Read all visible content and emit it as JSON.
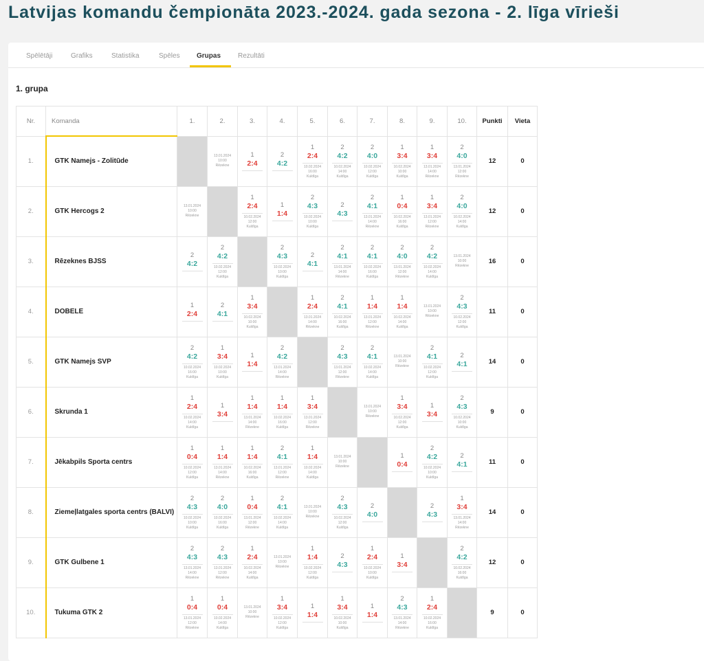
{
  "page_title": "Latvijas komandu čempionāta 2023.-2024. gada sezona - 2. līga vīrieši",
  "tabs": [
    "Spēlētāji",
    "Grafiks",
    "Statistika",
    "Spēles",
    "Grupas",
    "Rezultāti"
  ],
  "active_tab": "Grupas",
  "group_title": "1. grupa",
  "table_headers": {
    "nr": "Nr.",
    "team": "Komanda",
    "cols": [
      "1.",
      "2.",
      "3.",
      "4.",
      "5.",
      "6.",
      "7.",
      "8.",
      "9.",
      "10."
    ],
    "points": "Punkti",
    "place": "Vieta"
  },
  "accent_color": "#f2c500",
  "win_color": "#3aa79c",
  "loss_color": "#e0403a",
  "rows": [
    {
      "nr": "1.",
      "team": "GTK Namejs - Zolitūde",
      "points": "12",
      "place": "0",
      "cells": [
        null,
        {
          "info": [
            "13.01.2024",
            "10:00",
            "Rēzekne"
          ]
        },
        {
          "p": "1",
          "s": "2:4",
          "r": "loss"
        },
        {
          "p": "2",
          "s": "4:2",
          "r": "win"
        },
        {
          "p": "1",
          "s": "2:4",
          "r": "loss",
          "info": [
            "10.02.2024",
            "16:00",
            "Kuldīga"
          ]
        },
        {
          "p": "2",
          "s": "4:2",
          "r": "win",
          "info": [
            "10.02.2024",
            "14:00",
            "Kuldīga"
          ]
        },
        {
          "p": "2",
          "s": "4:0",
          "r": "win",
          "info": [
            "10.02.2024",
            "12:00",
            "Kuldīga"
          ]
        },
        {
          "p": "1",
          "s": "3:4",
          "r": "loss",
          "info": [
            "10.02.2024",
            "10:00",
            "Kuldīga"
          ]
        },
        {
          "p": "1",
          "s": "3:4",
          "r": "loss",
          "info": [
            "13.01.2024",
            "14:00",
            "Rēzekne"
          ]
        },
        {
          "p": "2",
          "s": "4:0",
          "r": "win",
          "info": [
            "13.01.2024",
            "12:00",
            "Rēzekne"
          ]
        }
      ]
    },
    {
      "nr": "2.",
      "team": "GTK Hercogs 2",
      "points": "12",
      "place": "0",
      "cells": [
        {
          "info": [
            "13.01.2024",
            "10:00",
            "Rēzekne"
          ]
        },
        null,
        {
          "p": "1",
          "s": "2:4",
          "r": "loss",
          "info": [
            "10.02.2024",
            "12:00",
            "Kuldīga"
          ]
        },
        {
          "p": "1",
          "s": "1:4",
          "r": "loss"
        },
        {
          "p": "2",
          "s": "4:3",
          "r": "win",
          "info": [
            "10.02.2024",
            "10:00",
            "Kuldīga"
          ]
        },
        {
          "p": "2",
          "s": "4:3",
          "r": "win"
        },
        {
          "p": "2",
          "s": "4:1",
          "r": "win",
          "info": [
            "13.01.2024",
            "14:00",
            "Rēzekne"
          ]
        },
        {
          "p": "1",
          "s": "0:4",
          "r": "loss",
          "info": [
            "10.02.2024",
            "16:00",
            "Kuldīga"
          ]
        },
        {
          "p": "1",
          "s": "3:4",
          "r": "loss",
          "info": [
            "13.01.2024",
            "12:00",
            "Rēzekne"
          ]
        },
        {
          "p": "2",
          "s": "4:0",
          "r": "win",
          "info": [
            "10.02.2024",
            "14:00",
            "Kuldīga"
          ]
        }
      ]
    },
    {
      "nr": "3.",
      "team": "Rēzeknes BJSS",
      "points": "16",
      "place": "0",
      "cells": [
        {
          "p": "2",
          "s": "4:2",
          "r": "win"
        },
        {
          "p": "2",
          "s": "4:2",
          "r": "win",
          "info": [
            "10.02.2024",
            "12:00",
            "Kuldīga"
          ]
        },
        null,
        {
          "p": "2",
          "s": "4:3",
          "r": "win",
          "info": [
            "10.02.2024",
            "10:00",
            "Kuldīga"
          ]
        },
        {
          "p": "2",
          "s": "4:1",
          "r": "win"
        },
        {
          "p": "2",
          "s": "4:1",
          "r": "win",
          "info": [
            "13.01.2024",
            "14:00",
            "Rēzekne"
          ]
        },
        {
          "p": "2",
          "s": "4:1",
          "r": "win",
          "info": [
            "10.02.2024",
            "16:00",
            "Kuldīga"
          ]
        },
        {
          "p": "2",
          "s": "4:0",
          "r": "win",
          "info": [
            "13.01.2024",
            "12:00",
            "Rēzekne"
          ]
        },
        {
          "p": "2",
          "s": "4:2",
          "r": "win",
          "info": [
            "10.02.2024",
            "14:00",
            "Kuldīga"
          ]
        },
        {
          "info": [
            "13.01.2024",
            "10:00",
            "Rēzekne"
          ]
        }
      ]
    },
    {
      "nr": "4.",
      "team": "DOBELE",
      "points": "11",
      "place": "0",
      "cells": [
        {
          "p": "1",
          "s": "2:4",
          "r": "loss"
        },
        {
          "p": "2",
          "s": "4:1",
          "r": "win"
        },
        {
          "p": "1",
          "s": "3:4",
          "r": "loss",
          "info": [
            "10.02.2024",
            "10:00",
            "Kuldīga"
          ]
        },
        null,
        {
          "p": "1",
          "s": "2:4",
          "r": "loss",
          "info": [
            "13.01.2024",
            "14:00",
            "Rēzekne"
          ]
        },
        {
          "p": "2",
          "s": "4:1",
          "r": "win",
          "info": [
            "10.02.2024",
            "16:00",
            "Kuldīga"
          ]
        },
        {
          "p": "1",
          "s": "1:4",
          "r": "loss",
          "info": [
            "13.01.2024",
            "12:00",
            "Rēzekne"
          ]
        },
        {
          "p": "1",
          "s": "1:4",
          "r": "loss",
          "info": [
            "10.02.2024",
            "14:00",
            "Kuldīga"
          ]
        },
        {
          "info": [
            "13.01.2024",
            "10:00",
            "Rēzekne"
          ]
        },
        {
          "p": "2",
          "s": "4:3",
          "r": "win",
          "info": [
            "10.02.2024",
            "12:00",
            "Kuldīga"
          ]
        }
      ]
    },
    {
      "nr": "5.",
      "team": "GTK Namejs SVP",
      "points": "14",
      "place": "0",
      "cells": [
        {
          "p": "2",
          "s": "4:2",
          "r": "win",
          "info": [
            "10.02.2024",
            "16:00",
            "Kuldīga"
          ]
        },
        {
          "p": "1",
          "s": "3:4",
          "r": "loss",
          "info": [
            "10.02.2024",
            "10:00",
            "Kuldīga"
          ]
        },
        {
          "p": "1",
          "s": "1:4",
          "r": "loss"
        },
        {
          "p": "2",
          "s": "4:2",
          "r": "win",
          "info": [
            "13.01.2024",
            "14:00",
            "Rēzekne"
          ]
        },
        null,
        {
          "p": "2",
          "s": "4:3",
          "r": "win",
          "info": [
            "13.01.2024",
            "12:00",
            "Rēzekne"
          ]
        },
        {
          "p": "2",
          "s": "4:1",
          "r": "win",
          "info": [
            "10.02.2024",
            "14:00",
            "Kuldīga"
          ]
        },
        {
          "info": [
            "13.01.2024",
            "10:00",
            "Rēzekne"
          ]
        },
        {
          "p": "2",
          "s": "4:1",
          "r": "win",
          "info": [
            "10.02.2024",
            "12:00",
            "Kuldīga"
          ]
        },
        {
          "p": "2",
          "s": "4:1",
          "r": "win"
        }
      ]
    },
    {
      "nr": "6.",
      "team": "Skrunda 1",
      "points": "9",
      "place": "0",
      "cells": [
        {
          "p": "1",
          "s": "2:4",
          "r": "loss",
          "info": [
            "10.02.2024",
            "14:00",
            "Kuldīga"
          ]
        },
        {
          "p": "1",
          "s": "3:4",
          "r": "loss"
        },
        {
          "p": "1",
          "s": "1:4",
          "r": "loss",
          "info": [
            "13.01.2024",
            "14:00",
            "Rēzekne"
          ]
        },
        {
          "p": "1",
          "s": "1:4",
          "r": "loss",
          "info": [
            "10.02.2024",
            "16:00",
            "Kuldīga"
          ]
        },
        {
          "p": "1",
          "s": "3:4",
          "r": "loss",
          "info": [
            "13.01.2024",
            "12:00",
            "Rēzekne"
          ]
        },
        null,
        {
          "info": [
            "13.01.2024",
            "10:00",
            "Rēzekne"
          ]
        },
        {
          "p": "1",
          "s": "3:4",
          "r": "loss",
          "info": [
            "10.02.2024",
            "12:00",
            "Kuldīga"
          ]
        },
        {
          "p": "1",
          "s": "3:4",
          "r": "loss"
        },
        {
          "p": "2",
          "s": "4:3",
          "r": "win",
          "info": [
            "10.02.2024",
            "10:00",
            "Kuldīga"
          ]
        }
      ]
    },
    {
      "nr": "7.",
      "team": "Jēkabpils Sporta centrs",
      "points": "11",
      "place": "0",
      "cells": [
        {
          "p": "1",
          "s": "0:4",
          "r": "loss",
          "info": [
            "10.02.2024",
            "12:00",
            "Kuldīga"
          ]
        },
        {
          "p": "1",
          "s": "1:4",
          "r": "loss",
          "info": [
            "13.01.2024",
            "14:00",
            "Rēzekne"
          ]
        },
        {
          "p": "1",
          "s": "1:4",
          "r": "loss",
          "info": [
            "10.02.2024",
            "16:00",
            "Kuldīga"
          ]
        },
        {
          "p": "2",
          "s": "4:1",
          "r": "win",
          "info": [
            "13.01.2024",
            "12:00",
            "Rēzekne"
          ]
        },
        {
          "p": "1",
          "s": "1:4",
          "r": "loss",
          "info": [
            "10.02.2024",
            "14:00",
            "Kuldīga"
          ]
        },
        {
          "info": [
            "13.01.2024",
            "10:00",
            "Rēzekne"
          ]
        },
        null,
        {
          "p": "1",
          "s": "0:4",
          "r": "loss"
        },
        {
          "p": "2",
          "s": "4:2",
          "r": "win",
          "info": [
            "10.02.2024",
            "10:00",
            "Kuldīga"
          ]
        },
        {
          "p": "2",
          "s": "4:1",
          "r": "win"
        }
      ]
    },
    {
      "nr": "8.",
      "team": "Ziemeļlatgales sporta centrs (BALVI)",
      "points": "14",
      "place": "0",
      "cells": [
        {
          "p": "2",
          "s": "4:3",
          "r": "win",
          "info": [
            "10.02.2024",
            "10:00",
            "Kuldīga"
          ]
        },
        {
          "p": "2",
          "s": "4:0",
          "r": "win",
          "info": [
            "10.02.2024",
            "16:00",
            "Kuldīga"
          ]
        },
        {
          "p": "1",
          "s": "0:4",
          "r": "loss",
          "info": [
            "13.01.2024",
            "12:00",
            "Rēzekne"
          ]
        },
        {
          "p": "2",
          "s": "4:1",
          "r": "win",
          "info": [
            "10.02.2024",
            "14:00",
            "Kuldīga"
          ]
        },
        {
          "info": [
            "13.01.2024",
            "10:00",
            "Rēzekne"
          ]
        },
        {
          "p": "2",
          "s": "4:3",
          "r": "win",
          "info": [
            "10.02.2024",
            "12:00",
            "Kuldīga"
          ]
        },
        {
          "p": "2",
          "s": "4:0",
          "r": "win"
        },
        null,
        {
          "p": "2",
          "s": "4:3",
          "r": "win"
        },
        {
          "p": "1",
          "s": "3:4",
          "r": "loss",
          "info": [
            "13.01.2024",
            "14:00",
            "Rēzekne"
          ]
        }
      ]
    },
    {
      "nr": "9.",
      "team": "GTK Gulbene 1",
      "points": "12",
      "place": "0",
      "cells": [
        {
          "p": "2",
          "s": "4:3",
          "r": "win",
          "info": [
            "13.01.2024",
            "14:00",
            "Rēzekne"
          ]
        },
        {
          "p": "2",
          "s": "4:3",
          "r": "win",
          "info": [
            "13.01.2024",
            "12:00",
            "Rēzekne"
          ]
        },
        {
          "p": "1",
          "s": "2:4",
          "r": "loss",
          "info": [
            "10.02.2024",
            "14:00",
            "Kuldīga"
          ]
        },
        {
          "info": [
            "13.01.2024",
            "10:00",
            "Rēzekne"
          ]
        },
        {
          "p": "1",
          "s": "1:4",
          "r": "loss",
          "info": [
            "10.02.2024",
            "12:00",
            "Kuldīga"
          ]
        },
        {
          "p": "2",
          "s": "4:3",
          "r": "win"
        },
        {
          "p": "1",
          "s": "2:4",
          "r": "loss",
          "info": [
            "10.02.2024",
            "10:00",
            "Kuldīga"
          ]
        },
        {
          "p": "1",
          "s": "3:4",
          "r": "loss"
        },
        null,
        {
          "p": "2",
          "s": "4:2",
          "r": "win",
          "info": [
            "10.02.2024",
            "16:00",
            "Kuldīga"
          ]
        }
      ]
    },
    {
      "nr": "10.",
      "team": "Tukuma GTK 2",
      "points": "9",
      "place": "0",
      "cells": [
        {
          "p": "1",
          "s": "0:4",
          "r": "loss",
          "info": [
            "13.01.2024",
            "12:00",
            "Rēzekne"
          ]
        },
        {
          "p": "1",
          "s": "0:4",
          "r": "loss",
          "info": [
            "10.02.2024",
            "14:00",
            "Kuldīga"
          ]
        },
        {
          "info": [
            "13.01.2024",
            "10:00",
            "Rēzekne"
          ]
        },
        {
          "p": "1",
          "s": "3:4",
          "r": "loss",
          "info": [
            "10.02.2024",
            "12:00",
            "Kuldīga"
          ]
        },
        {
          "p": "1",
          "s": "1:4",
          "r": "loss"
        },
        {
          "p": "1",
          "s": "3:4",
          "r": "loss",
          "info": [
            "10.02.2024",
            "10:00",
            "Kuldīga"
          ]
        },
        {
          "p": "1",
          "s": "1:4",
          "r": "loss"
        },
        {
          "p": "2",
          "s": "4:3",
          "r": "win",
          "info": [
            "13.01.2024",
            "14:00",
            "Rēzekne"
          ]
        },
        {
          "p": "1",
          "s": "2:4",
          "r": "loss",
          "info": [
            "10.02.2024",
            "16:00",
            "Kuldīga"
          ]
        },
        null
      ]
    }
  ]
}
